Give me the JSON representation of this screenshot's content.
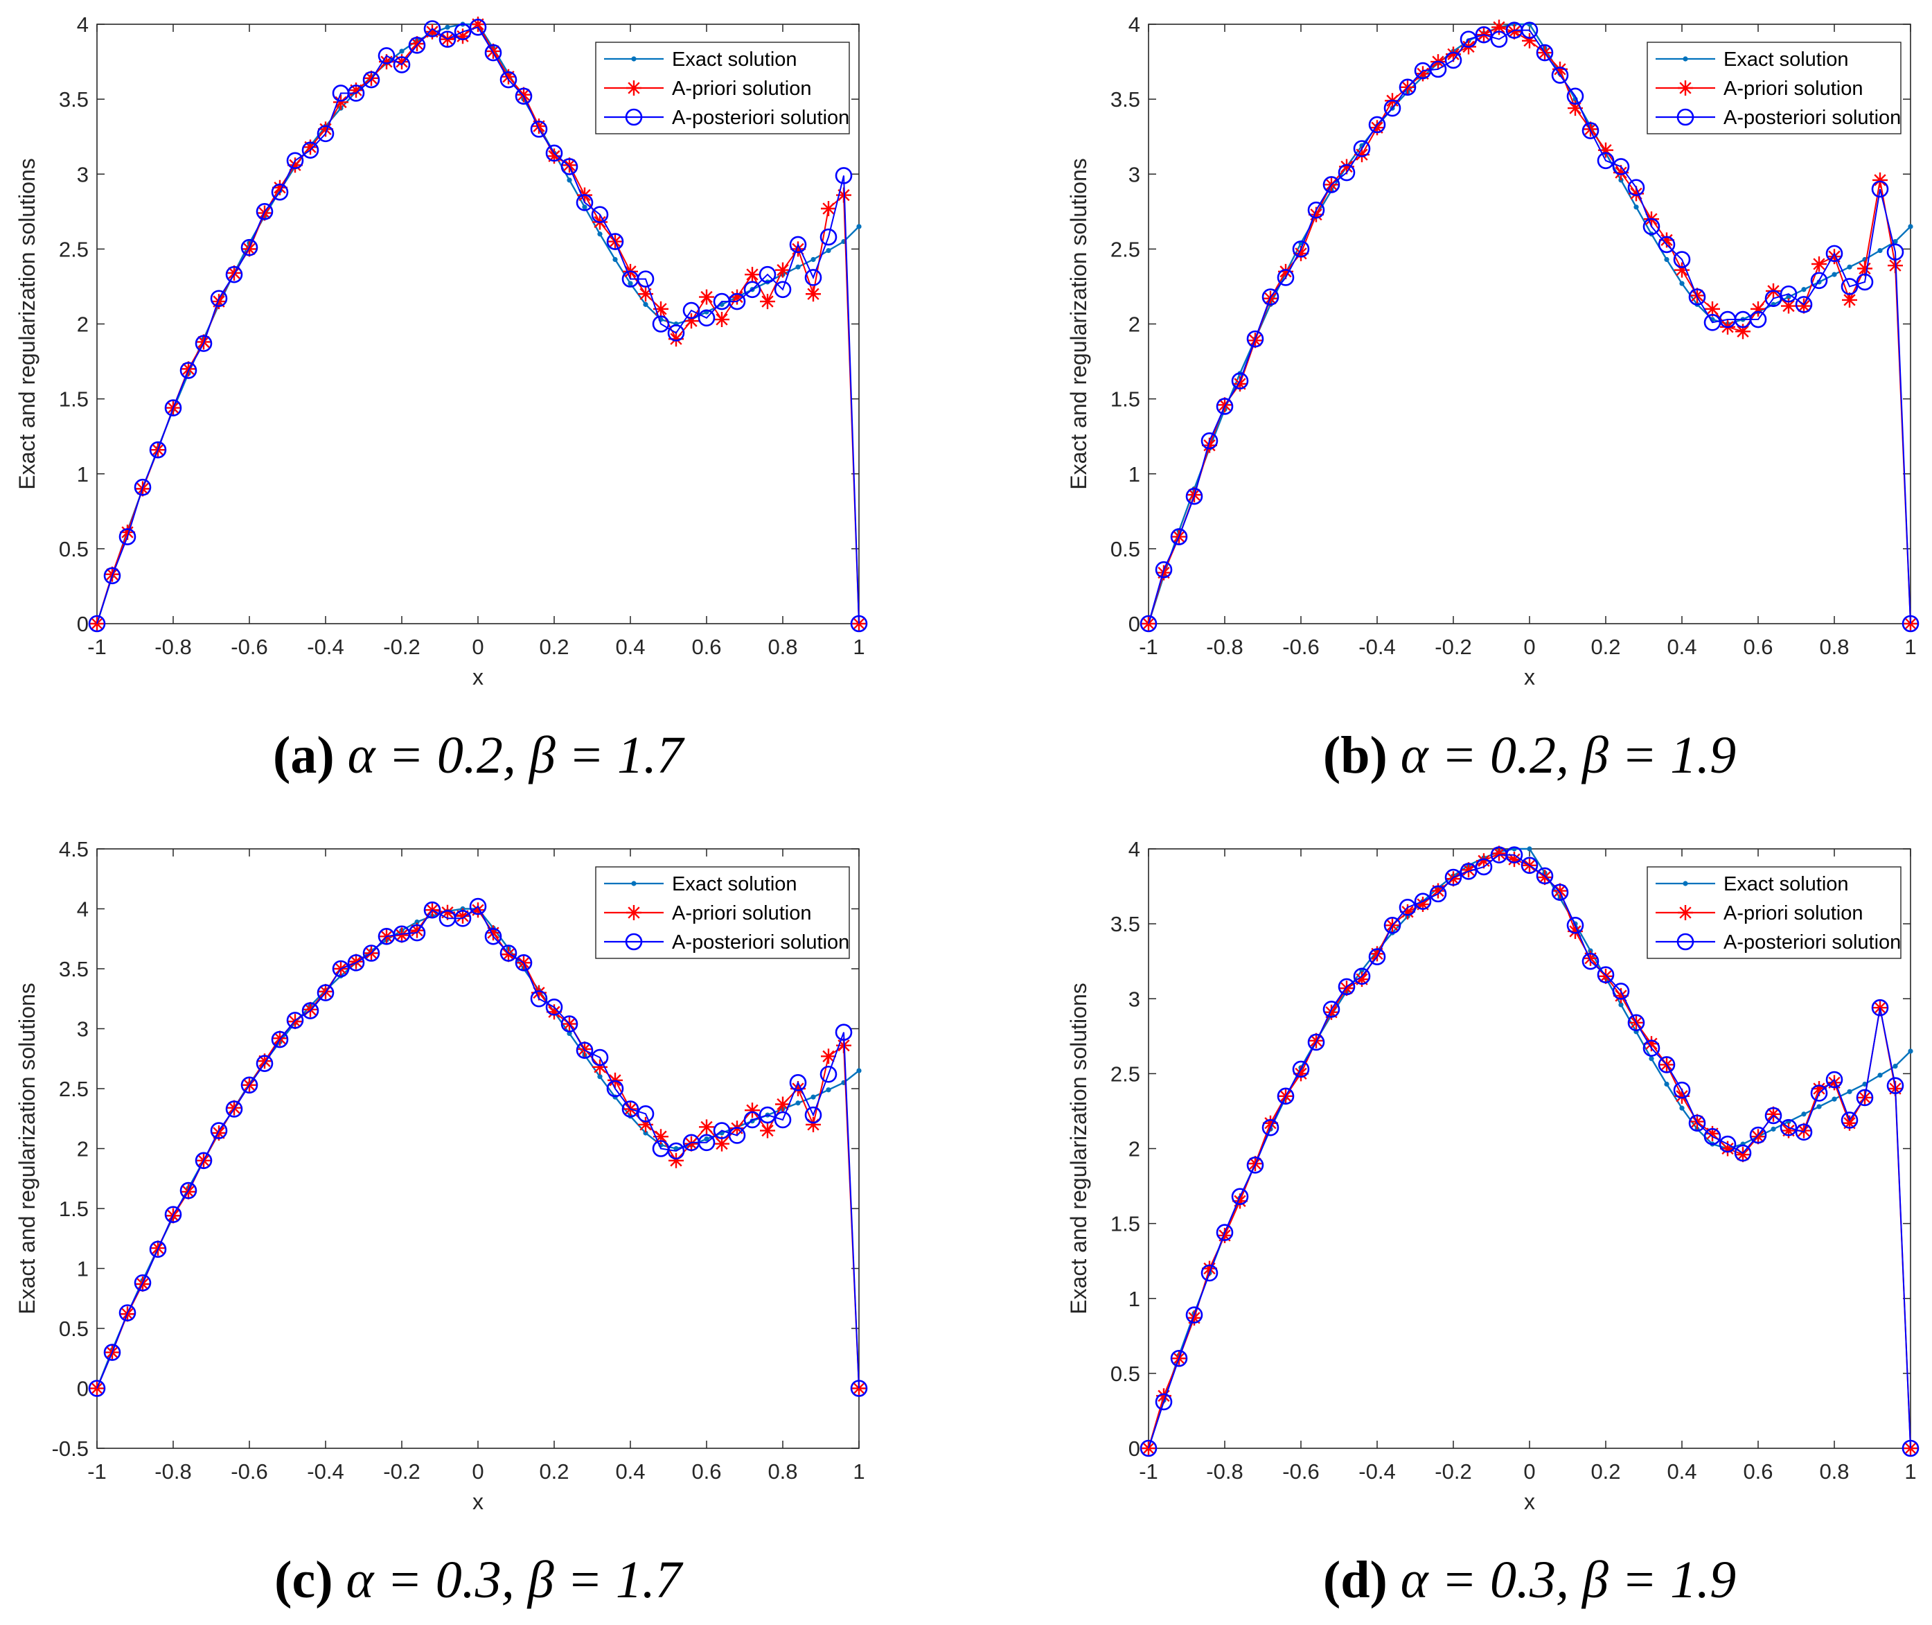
{
  "figure": {
    "panels_order": [
      "a",
      "b",
      "c",
      "d"
    ]
  },
  "legend": {
    "exact": "Exact solution",
    "apriori": "A-priori solution",
    "aposteriori": "A-posteriori solution"
  },
  "colors": {
    "exact": "#0072BD",
    "apriori": "#FF0000",
    "aposteriori": "#0000FF",
    "axis": "#262626"
  },
  "chart_data": [
    {
      "id": "a",
      "type": "line",
      "caption_label": "(a)",
      "caption_params": "α = 0.2, β = 1.7",
      "xlabel": "x",
      "ylabel": "Exact and regularization solutions",
      "xlim": [
        -1,
        1
      ],
      "ylim": [
        0,
        4
      ],
      "xticks": [
        -1,
        -0.8,
        -0.6,
        -0.4,
        -0.2,
        0,
        0.2,
        0.4,
        0.6,
        0.8,
        1
      ],
      "xtick_labels": [
        "-1",
        "-0.8",
        "-0.6",
        "-0.4",
        "-0.2",
        "0",
        "0.2",
        "0.4",
        "0.6",
        "0.8",
        "1"
      ],
      "yticks": [
        0,
        0.5,
        1,
        1.5,
        2,
        2.5,
        3,
        3.5,
        4
      ],
      "ytick_labels": [
        "0",
        "0.5",
        "1",
        "1.5",
        "2",
        "2.5",
        "3",
        "3.5",
        "4"
      ],
      "legend_position": "top-right",
      "x": [
        -1,
        -0.96,
        -0.92,
        -0.88,
        -0.84,
        -0.8,
        -0.76,
        -0.72,
        -0.68,
        -0.64,
        -0.6,
        -0.56,
        -0.52,
        -0.48,
        -0.44,
        -0.4,
        -0.36,
        -0.32,
        -0.28,
        -0.24,
        -0.2,
        -0.16,
        -0.12,
        -0.08,
        -0.04,
        0,
        0.04,
        0.08,
        0.12,
        0.16,
        0.2,
        0.24,
        0.28,
        0.32,
        0.36,
        0.4,
        0.44,
        0.48,
        0.52,
        0.56,
        0.6,
        0.64,
        0.68,
        0.72,
        0.76,
        0.8,
        0.84,
        0.88,
        0.92,
        0.96,
        1
      ],
      "series": [
        {
          "name": "Exact solution",
          "key": "exact",
          "values": [
            0,
            0.32,
            0.62,
            0.9,
            1.17,
            1.43,
            1.67,
            1.9,
            2.13,
            2.34,
            2.54,
            2.72,
            2.89,
            3.05,
            3.19,
            3.32,
            3.44,
            3.55,
            3.65,
            3.74,
            3.82,
            3.89,
            3.94,
            3.98,
            4.0,
            4.0,
            3.84,
            3.67,
            3.5,
            3.32,
            3.14,
            2.96,
            2.78,
            2.6,
            2.43,
            2.27,
            2.13,
            2.03,
            2.0,
            2.03,
            2.08,
            2.13,
            2.18,
            2.23,
            2.28,
            2.33,
            2.38,
            2.43,
            2.49,
            2.55,
            2.65
          ]
        },
        {
          "name": "A-priori solution",
          "key": "apriori",
          "values": [
            0,
            0.33,
            0.61,
            0.9,
            1.16,
            1.44,
            1.7,
            1.88,
            2.15,
            2.34,
            2.5,
            2.74,
            2.91,
            3.06,
            3.18,
            3.3,
            3.48,
            3.56,
            3.64,
            3.75,
            3.75,
            3.87,
            3.95,
            3.9,
            3.92,
            4.0,
            3.82,
            3.65,
            3.53,
            3.32,
            3.12,
            3.06,
            2.86,
            2.68,
            2.55,
            2.35,
            2.2,
            2.1,
            1.9,
            2.02,
            2.18,
            2.03,
            2.18,
            2.33,
            2.15,
            2.36,
            2.5,
            2.2,
            2.77,
            2.86,
            0
          ]
        },
        {
          "name": "A-posteriori solution",
          "key": "aposteriori",
          "values": [
            0,
            0.32,
            0.58,
            0.91,
            1.16,
            1.44,
            1.69,
            1.87,
            2.17,
            2.33,
            2.51,
            2.75,
            2.88,
            3.09,
            3.16,
            3.27,
            3.54,
            3.54,
            3.63,
            3.79,
            3.73,
            3.86,
            3.97,
            3.9,
            3.95,
            3.98,
            3.81,
            3.63,
            3.52,
            3.3,
            3.14,
            3.05,
            2.81,
            2.73,
            2.55,
            2.3,
            2.3,
            2.0,
            1.94,
            2.09,
            2.04,
            2.15,
            2.15,
            2.23,
            2.33,
            2.23,
            2.53,
            2.31,
            2.58,
            2.99,
            0
          ]
        }
      ]
    },
    {
      "id": "b",
      "type": "line",
      "caption_label": "(b)",
      "caption_params": "α = 0.2, β = 1.9",
      "xlabel": "x",
      "ylabel": "Exact and regularization solutions",
      "xlim": [
        -1,
        1
      ],
      "ylim": [
        0,
        4
      ],
      "xticks": [
        -1,
        -0.8,
        -0.6,
        -0.4,
        -0.2,
        0,
        0.2,
        0.4,
        0.6,
        0.8,
        1
      ],
      "xtick_labels": [
        "-1",
        "-0.8",
        "-0.6",
        "-0.4",
        "-0.2",
        "0",
        "0.2",
        "0.4",
        "0.6",
        "0.8",
        "1"
      ],
      "yticks": [
        0,
        0.5,
        1,
        1.5,
        2,
        2.5,
        3,
        3.5,
        4
      ],
      "ytick_labels": [
        "0",
        "0.5",
        "1",
        "1.5",
        "2",
        "2.5",
        "3",
        "3.5",
        "4"
      ],
      "legend_position": "top-right",
      "x": [
        -1,
        -0.96,
        -0.92,
        -0.88,
        -0.84,
        -0.8,
        -0.76,
        -0.72,
        -0.68,
        -0.64,
        -0.6,
        -0.56,
        -0.52,
        -0.48,
        -0.44,
        -0.4,
        -0.36,
        -0.32,
        -0.28,
        -0.24,
        -0.2,
        -0.16,
        -0.12,
        -0.08,
        -0.04,
        0,
        0.04,
        0.08,
        0.12,
        0.16,
        0.2,
        0.24,
        0.28,
        0.32,
        0.36,
        0.4,
        0.44,
        0.48,
        0.52,
        0.56,
        0.6,
        0.64,
        0.68,
        0.72,
        0.76,
        0.8,
        0.84,
        0.88,
        0.92,
        0.96,
        1
      ],
      "series": [
        {
          "name": "Exact solution",
          "key": "exact",
          "values": [
            0,
            0.32,
            0.62,
            0.9,
            1.17,
            1.43,
            1.67,
            1.9,
            2.13,
            2.34,
            2.54,
            2.72,
            2.89,
            3.05,
            3.19,
            3.32,
            3.44,
            3.55,
            3.65,
            3.74,
            3.82,
            3.89,
            3.94,
            3.98,
            4.0,
            4.0,
            3.84,
            3.67,
            3.5,
            3.32,
            3.14,
            2.96,
            2.78,
            2.6,
            2.43,
            2.27,
            2.13,
            2.03,
            2.0,
            2.03,
            2.08,
            2.13,
            2.18,
            2.23,
            2.28,
            2.33,
            2.38,
            2.43,
            2.49,
            2.55,
            2.65
          ]
        },
        {
          "name": "A-priori solution",
          "key": "apriori",
          "values": [
            0,
            0.34,
            0.58,
            0.86,
            1.19,
            1.46,
            1.6,
            1.89,
            2.17,
            2.35,
            2.47,
            2.73,
            2.93,
            3.05,
            3.13,
            3.31,
            3.49,
            3.58,
            3.67,
            3.75,
            3.8,
            3.85,
            3.93,
            3.98,
            3.95,
            3.89,
            3.81,
            3.7,
            3.44,
            3.3,
            3.16,
            3.01,
            2.87,
            2.7,
            2.56,
            2.36,
            2.19,
            2.1,
            1.98,
            1.95,
            2.1,
            2.22,
            2.12,
            2.12,
            2.4,
            2.45,
            2.16,
            2.37,
            2.96,
            2.39,
            0
          ]
        },
        {
          "name": "A-posteriori solution",
          "key": "aposteriori",
          "values": [
            0,
            0.36,
            0.58,
            0.85,
            1.22,
            1.45,
            1.62,
            1.9,
            2.18,
            2.31,
            2.5,
            2.76,
            2.93,
            3.01,
            3.17,
            3.33,
            3.44,
            3.58,
            3.69,
            3.7,
            3.76,
            3.9,
            3.93,
            3.9,
            3.96,
            3.96,
            3.81,
            3.66,
            3.52,
            3.29,
            3.09,
            3.05,
            2.91,
            2.65,
            2.53,
            2.43,
            2.18,
            2.01,
            2.03,
            2.03,
            2.03,
            2.17,
            2.2,
            2.13,
            2.29,
            2.47,
            2.25,
            2.28,
            2.9,
            2.48,
            0
          ]
        }
      ]
    },
    {
      "id": "c",
      "type": "line",
      "caption_label": "(c)",
      "caption_params": "α = 0.3, β = 1.7",
      "xlabel": "x",
      "ylabel": "Exact and regularization solutions",
      "xlim": [
        -1,
        1
      ],
      "ylim": [
        -0.5,
        4.5
      ],
      "xticks": [
        -1,
        -0.8,
        -0.6,
        -0.4,
        -0.2,
        0,
        0.2,
        0.4,
        0.6,
        0.8,
        1
      ],
      "xtick_labels": [
        "-1",
        "-0.8",
        "-0.6",
        "-0.4",
        "-0.2",
        "0",
        "0.2",
        "0.4",
        "0.6",
        "0.8",
        "1"
      ],
      "yticks": [
        -0.5,
        0,
        0.5,
        1,
        1.5,
        2,
        2.5,
        3,
        3.5,
        4,
        4.5
      ],
      "ytick_labels": [
        "-0.5",
        "0",
        "0.5",
        "1",
        "1.5",
        "2",
        "2.5",
        "3",
        "3.5",
        "4",
        "4.5"
      ],
      "legend_position": "top-right",
      "x": [
        -1,
        -0.96,
        -0.92,
        -0.88,
        -0.84,
        -0.8,
        -0.76,
        -0.72,
        -0.68,
        -0.64,
        -0.6,
        -0.56,
        -0.52,
        -0.48,
        -0.44,
        -0.4,
        -0.36,
        -0.32,
        -0.28,
        -0.24,
        -0.2,
        -0.16,
        -0.12,
        -0.08,
        -0.04,
        0,
        0.04,
        0.08,
        0.12,
        0.16,
        0.2,
        0.24,
        0.28,
        0.32,
        0.36,
        0.4,
        0.44,
        0.48,
        0.52,
        0.56,
        0.6,
        0.64,
        0.68,
        0.72,
        0.76,
        0.8,
        0.84,
        0.88,
        0.92,
        0.96,
        1
      ],
      "series": [
        {
          "name": "Exact solution",
          "key": "exact",
          "values": [
            0,
            0.32,
            0.62,
            0.9,
            1.17,
            1.43,
            1.67,
            1.9,
            2.13,
            2.34,
            2.54,
            2.72,
            2.89,
            3.05,
            3.19,
            3.32,
            3.44,
            3.55,
            3.65,
            3.74,
            3.82,
            3.89,
            3.94,
            3.98,
            4.0,
            4.0,
            3.84,
            3.67,
            3.5,
            3.32,
            3.14,
            2.96,
            2.78,
            2.6,
            2.43,
            2.27,
            2.13,
            2.03,
            2.0,
            2.03,
            2.08,
            2.13,
            2.18,
            2.23,
            2.28,
            2.33,
            2.38,
            2.43,
            2.49,
            2.55,
            2.65
          ]
        },
        {
          "name": "A-priori solution",
          "key": "apriori",
          "values": [
            0,
            0.3,
            0.62,
            0.87,
            1.17,
            1.44,
            1.64,
            1.9,
            2.13,
            2.34,
            2.53,
            2.73,
            2.92,
            3.06,
            3.16,
            3.31,
            3.5,
            3.56,
            3.63,
            3.77,
            3.78,
            3.82,
            3.99,
            3.97,
            3.94,
            3.99,
            3.8,
            3.62,
            3.55,
            3.3,
            3.14,
            3.04,
            2.83,
            2.68,
            2.57,
            2.33,
            2.2,
            2.1,
            1.9,
            2.04,
            2.18,
            2.04,
            2.17,
            2.32,
            2.15,
            2.37,
            2.5,
            2.2,
            2.77,
            2.86,
            0
          ]
        },
        {
          "name": "A-posteriori solution",
          "key": "aposteriori",
          "values": [
            0,
            0.3,
            0.63,
            0.88,
            1.16,
            1.45,
            1.65,
            1.9,
            2.15,
            2.33,
            2.53,
            2.71,
            2.91,
            3.07,
            3.15,
            3.3,
            3.5,
            3.55,
            3.63,
            3.77,
            3.79,
            3.8,
            3.99,
            3.92,
            3.92,
            4.02,
            3.77,
            3.63,
            3.55,
            3.25,
            3.18,
            3.04,
            2.82,
            2.76,
            2.5,
            2.33,
            2.29,
            2.0,
            1.98,
            2.05,
            2.05,
            2.15,
            2.11,
            2.24,
            2.28,
            2.24,
            2.55,
            2.28,
            2.62,
            2.97,
            0
          ]
        }
      ]
    },
    {
      "id": "d",
      "type": "line",
      "caption_label": "(d)",
      "caption_params": "α = 0.3, β = 1.9",
      "xlabel": "x",
      "ylabel": "Exact and regularization solutions",
      "xlim": [
        -1,
        1
      ],
      "ylim": [
        0,
        4
      ],
      "xticks": [
        -1,
        -0.8,
        -0.6,
        -0.4,
        -0.2,
        0,
        0.2,
        0.4,
        0.6,
        0.8,
        1
      ],
      "xtick_labels": [
        "-1",
        "-0.8",
        "-0.6",
        "-0.4",
        "-0.2",
        "0",
        "0.2",
        "0.4",
        "0.6",
        "0.8",
        "1"
      ],
      "yticks": [
        0,
        0.5,
        1,
        1.5,
        2,
        2.5,
        3,
        3.5,
        4
      ],
      "ytick_labels": [
        "0",
        "0.5",
        "1",
        "1.5",
        "2",
        "2.5",
        "3",
        "3.5",
        "4"
      ],
      "legend_position": "top-right",
      "x": [
        -1,
        -0.96,
        -0.92,
        -0.88,
        -0.84,
        -0.8,
        -0.76,
        -0.72,
        -0.68,
        -0.64,
        -0.6,
        -0.56,
        -0.52,
        -0.48,
        -0.44,
        -0.4,
        -0.36,
        -0.32,
        -0.28,
        -0.24,
        -0.2,
        -0.16,
        -0.12,
        -0.08,
        -0.04,
        0,
        0.04,
        0.08,
        0.12,
        0.16,
        0.2,
        0.24,
        0.28,
        0.32,
        0.36,
        0.4,
        0.44,
        0.48,
        0.52,
        0.56,
        0.6,
        0.64,
        0.68,
        0.72,
        0.76,
        0.8,
        0.84,
        0.88,
        0.92,
        0.96,
        1
      ],
      "series": [
        {
          "name": "Exact solution",
          "key": "exact",
          "values": [
            0,
            0.32,
            0.62,
            0.9,
            1.17,
            1.43,
            1.67,
            1.9,
            2.13,
            2.34,
            2.54,
            2.72,
            2.89,
            3.05,
            3.19,
            3.32,
            3.44,
            3.55,
            3.65,
            3.74,
            3.82,
            3.89,
            3.94,
            3.98,
            4.0,
            4.0,
            3.84,
            3.67,
            3.5,
            3.32,
            3.14,
            2.96,
            2.78,
            2.6,
            2.43,
            2.27,
            2.13,
            2.03,
            2.0,
            2.03,
            2.08,
            2.13,
            2.18,
            2.23,
            2.28,
            2.33,
            2.38,
            2.43,
            2.49,
            2.55,
            2.65
          ]
        },
        {
          "name": "A-priori solution",
          "key": "apriori",
          "values": [
            0,
            0.35,
            0.6,
            0.87,
            1.2,
            1.42,
            1.65,
            1.9,
            2.17,
            2.35,
            2.5,
            2.72,
            2.91,
            3.07,
            3.13,
            3.3,
            3.49,
            3.58,
            3.63,
            3.72,
            3.8,
            3.86,
            3.92,
            3.97,
            3.93,
            3.89,
            3.81,
            3.72,
            3.45,
            3.27,
            3.15,
            3.02,
            2.84,
            2.7,
            2.56,
            2.35,
            2.18,
            2.1,
            2.0,
            1.96,
            2.08,
            2.23,
            2.12,
            2.12,
            2.4,
            2.44,
            2.17,
            2.34,
            2.94,
            2.4,
            0
          ]
        },
        {
          "name": "A-posteriori solution",
          "key": "aposteriori",
          "values": [
            0,
            0.31,
            0.6,
            0.89,
            1.17,
            1.44,
            1.68,
            1.89,
            2.14,
            2.35,
            2.53,
            2.71,
            2.93,
            3.08,
            3.15,
            3.28,
            3.49,
            3.61,
            3.65,
            3.7,
            3.81,
            3.85,
            3.88,
            3.96,
            3.96,
            3.89,
            3.82,
            3.71,
            3.49,
            3.25,
            3.16,
            3.05,
            2.84,
            2.67,
            2.56,
            2.39,
            2.17,
            2.08,
            2.03,
            1.97,
            2.09,
            2.22,
            2.14,
            2.11,
            2.37,
            2.46,
            2.19,
            2.34,
            2.94,
            2.42,
            0
          ]
        }
      ]
    }
  ]
}
